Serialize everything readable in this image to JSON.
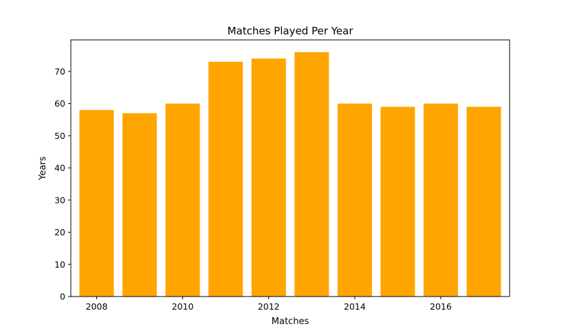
{
  "chart_data": {
    "type": "bar",
    "title": "Matches Played Per Year",
    "xlabel": "Matches",
    "ylabel": "Years",
    "x": [
      2008,
      2009,
      2010,
      2011,
      2012,
      2013,
      2014,
      2015,
      2016,
      2017
    ],
    "values": [
      58,
      57,
      60,
      73,
      74,
      76,
      60,
      59,
      60,
      59
    ],
    "xlim": [
      2007.4,
      2017.6
    ],
    "ylim": [
      0,
      79.8
    ],
    "xticks": [
      2008,
      2010,
      2012,
      2014,
      2016
    ],
    "yticks": [
      0,
      10,
      20,
      30,
      40,
      50,
      60,
      70
    ],
    "bar_width": 0.8,
    "bar_color": "#FFA500",
    "grid": false,
    "legend": "none"
  }
}
